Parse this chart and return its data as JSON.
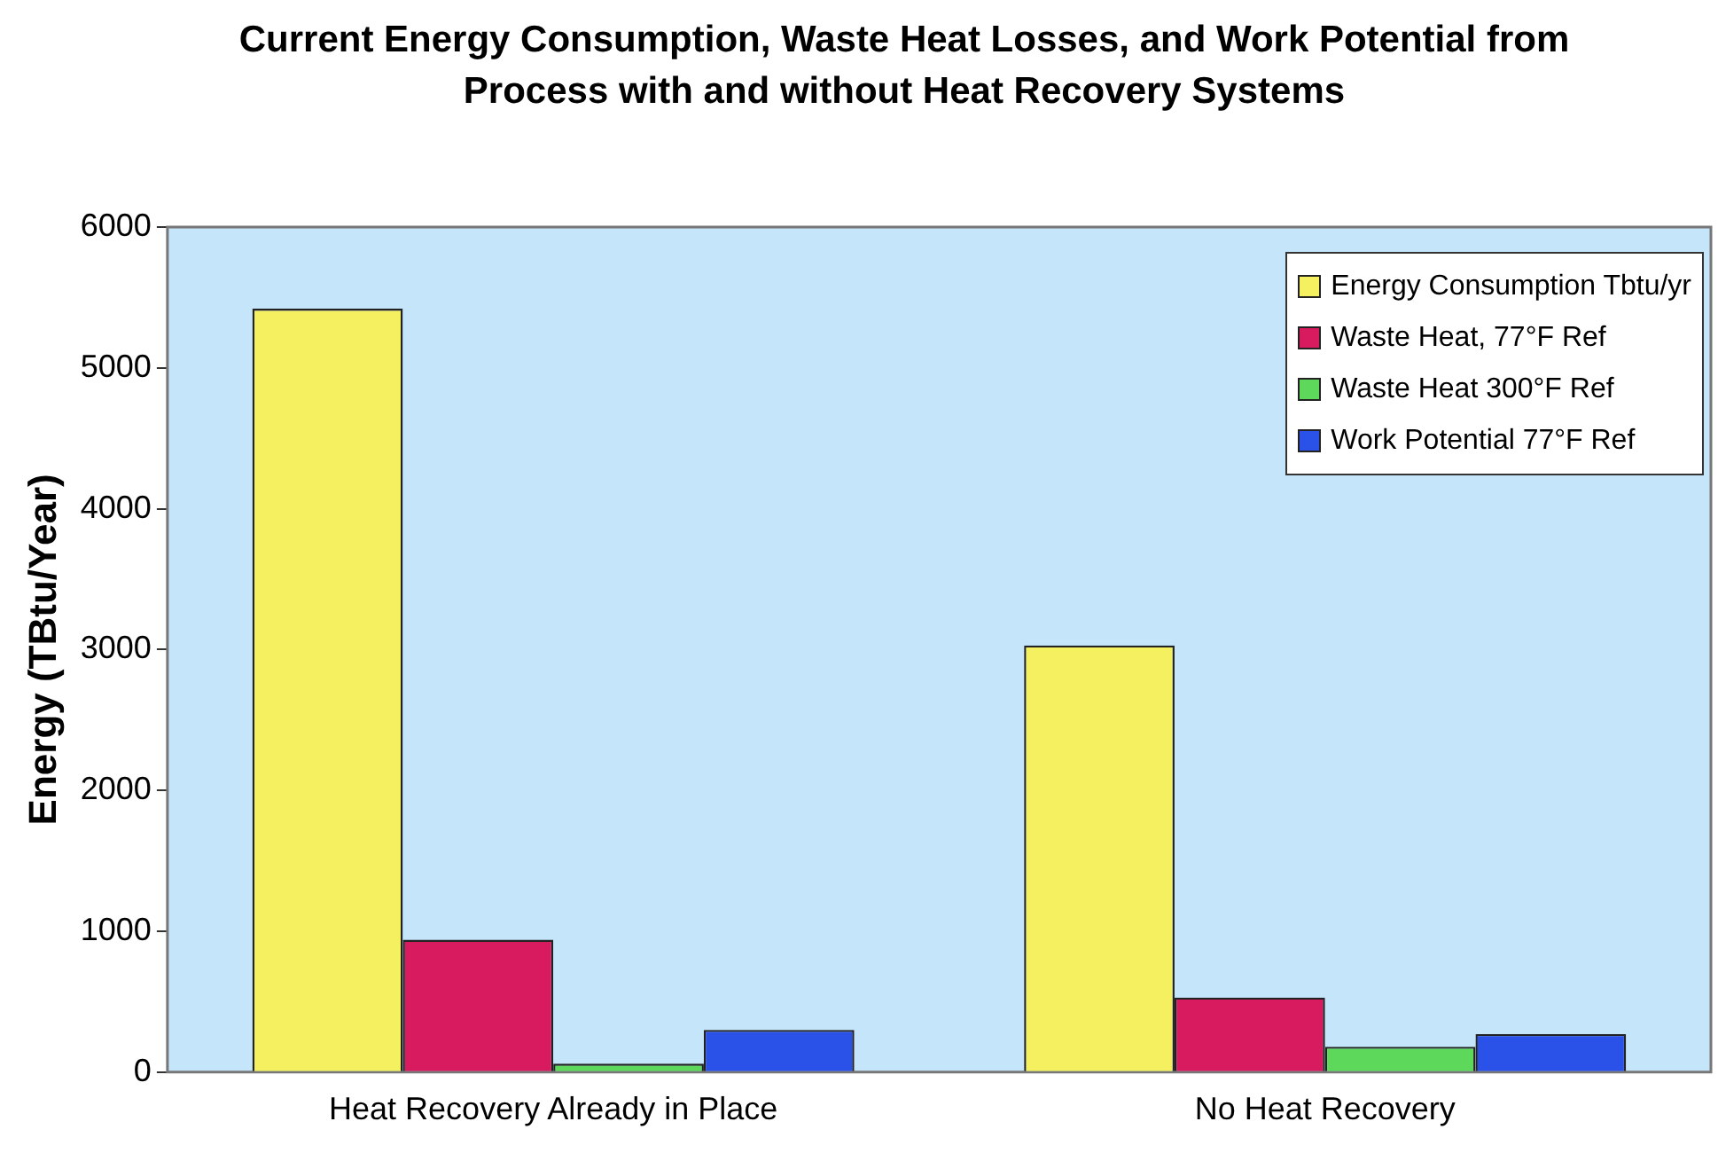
{
  "chart_data": {
    "type": "bar",
    "title": "Current Energy Consumption, Waste Heat Losses, and Work Potential from Process with and without Heat Recovery Systems",
    "ylabel": "Energy (TBtu/Year)",
    "categories": [
      "Heat Recovery Already in Place",
      "No Heat Recovery"
    ],
    "series": [
      {
        "name": "Energy Consumption Tbtu/yr",
        "color": "#f5f060",
        "values": [
          5420,
          3030
        ]
      },
      {
        "name": "Waste Heat, 77°F Ref",
        "color": "#d81b5e",
        "values": [
          940,
          530
        ]
      },
      {
        "name": "Waste Heat 300°F Ref",
        "color": "#5ed85a",
        "values": [
          60,
          180
        ]
      },
      {
        "name": "Work Potential 77°F Ref",
        "color": "#2a52e8",
        "values": [
          300,
          270
        ]
      }
    ],
    "ylim": [
      0,
      6000
    ],
    "yticks": [
      0,
      1000,
      2000,
      3000,
      4000,
      5000,
      6000
    ],
    "grid": false,
    "legend": "top right"
  }
}
